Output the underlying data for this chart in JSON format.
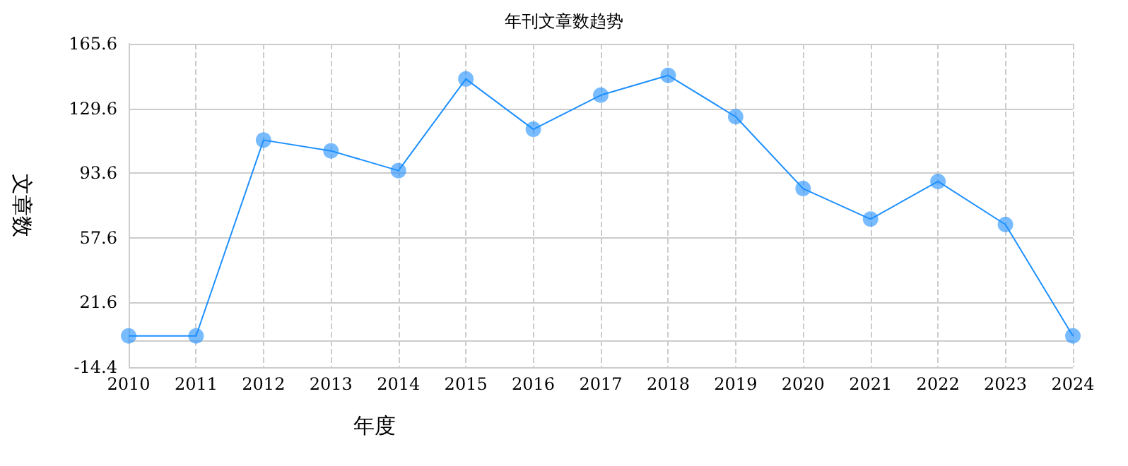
{
  "chart_data": {
    "type": "line",
    "title": "年刊文章数趋势",
    "xlabel": "年度",
    "ylabel": "文章数",
    "categories": [
      "2010",
      "2011",
      "2012",
      "2013",
      "2014",
      "2015",
      "2016",
      "2017",
      "2018",
      "2019",
      "2020",
      "2021",
      "2022",
      "2023",
      "2024"
    ],
    "series": [
      {
        "color": "#1e90ff",
        "values": [
          3,
          3,
          112,
          106,
          95,
          146,
          118,
          137,
          148,
          125,
          85,
          68,
          89,
          65,
          3
        ]
      }
    ],
    "ylim": [
      -14.4,
      165.6
    ],
    "yticks": [
      -14.4,
      21.6,
      57.6,
      93.6,
      129.6,
      165.6
    ],
    "grid": true,
    "marker": "circle",
    "line_style": "solid"
  }
}
